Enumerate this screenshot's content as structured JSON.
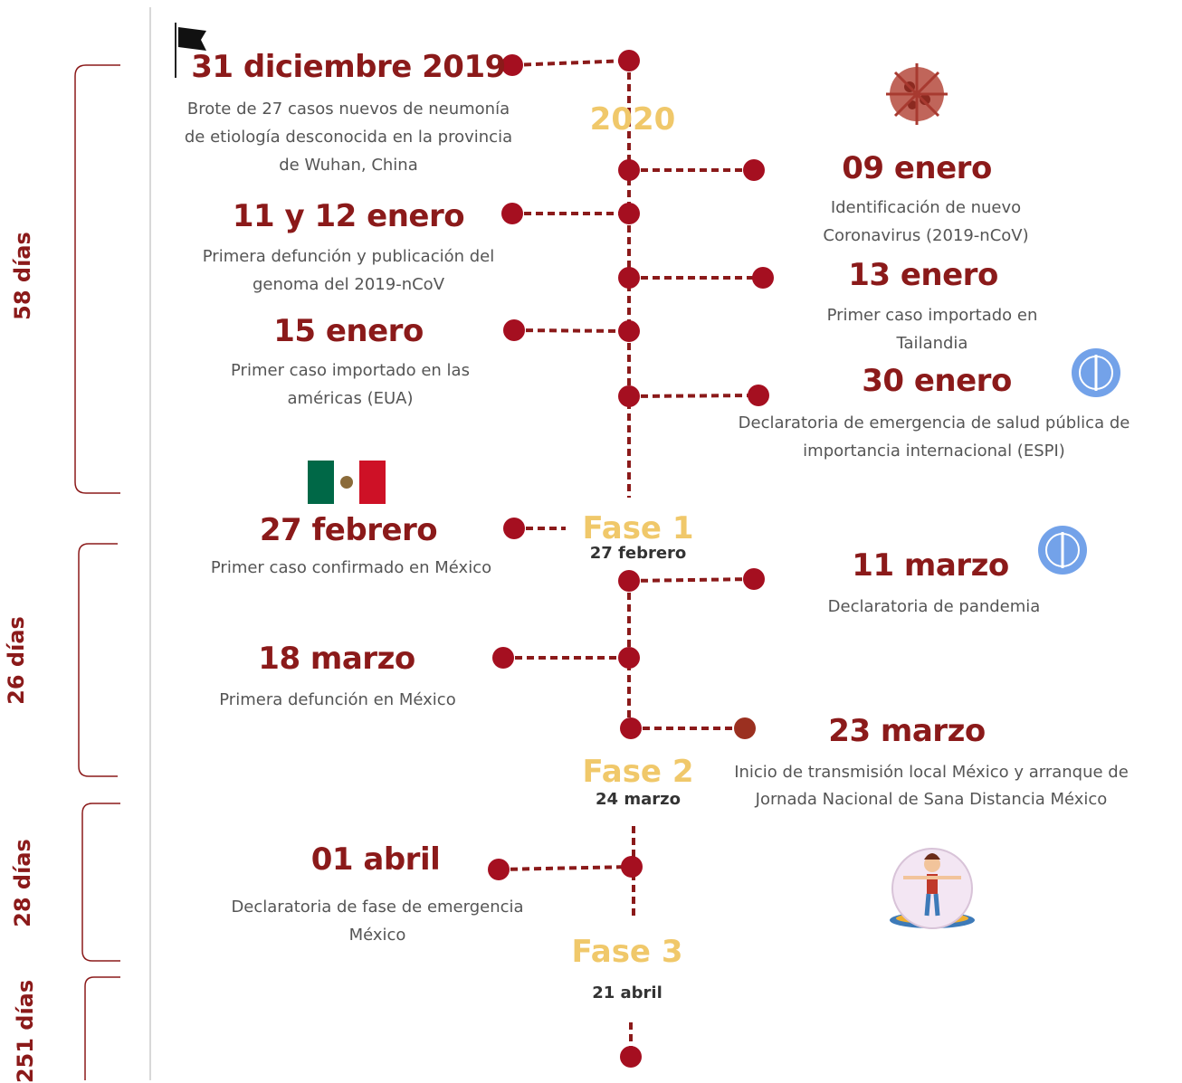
{
  "brackets": [
    {
      "label": "58 días"
    },
    {
      "label": "26 días"
    },
    {
      "label": "28 días"
    },
    {
      "label": "251 días"
    }
  ],
  "year": "2020",
  "events": [
    {
      "date": "31 diciembre 2019",
      "text": "Brote de 27 casos nuevos de neumonía de etiología desconocida en la provincia de Wuhan, China"
    },
    {
      "date": "09 enero",
      "text": "Identificación de nuevo Coronavirus (2019-nCoV)"
    },
    {
      "date": "11 y 12 enero",
      "text": "Primera defunción y publicación del genoma del 2019-nCoV"
    },
    {
      "date": "13 enero",
      "text": "Primer caso importado en Tailandia"
    },
    {
      "date": "15 enero",
      "text": "Primer caso importado en las américas (EUA)"
    },
    {
      "date": "30 enero",
      "text": "Declaratoria de emergencia de salud pública de importancia internacional (ESPI)"
    },
    {
      "date": "27 febrero",
      "text": "Primer caso confirmado en México"
    },
    {
      "date": "11 marzo",
      "text": "Declaratoria de pandemia"
    },
    {
      "date": "18 marzo",
      "text": "Primera defunción en México"
    },
    {
      "date": "23 marzo",
      "text": "Inicio de transmisión local México y arranque de Jornada Nacional de Sana Distancia México"
    },
    {
      "date": "01 abril",
      "text": "Declaratoria de fase de emergencia México"
    }
  ],
  "phases": [
    {
      "name": "Fase 1",
      "date": "27 febrero"
    },
    {
      "name": "Fase 2",
      "date": "24 marzo"
    },
    {
      "name": "Fase 3",
      "date": "21 abril"
    }
  ]
}
